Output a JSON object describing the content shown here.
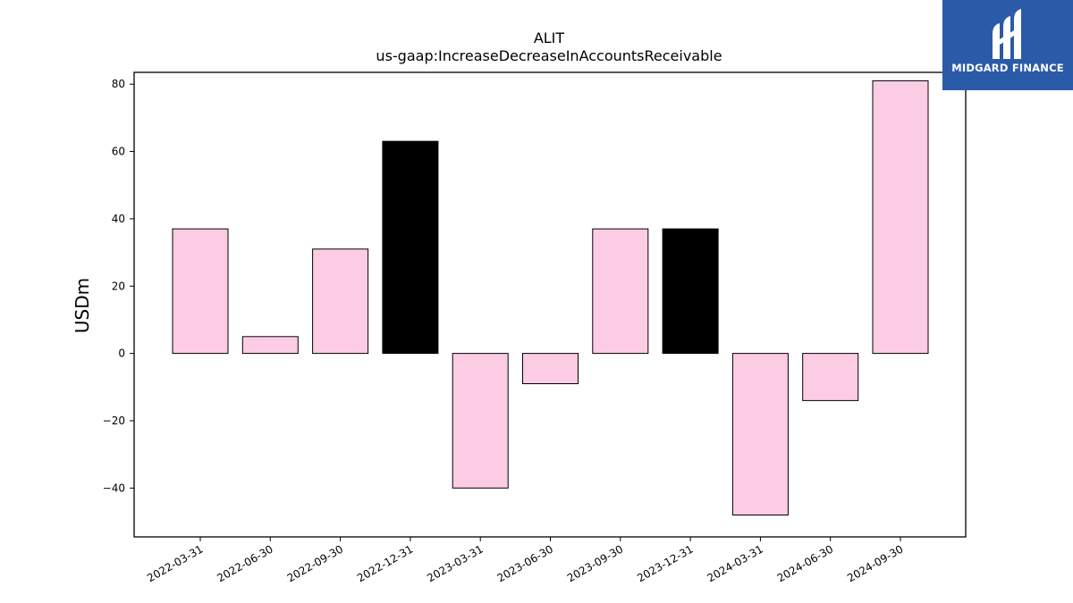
{
  "chart_data": {
    "type": "bar",
    "title": "ALIT",
    "subtitle": "us-gaap:IncreaseDecreaseInAccountsReceivable",
    "ylabel": "USDm",
    "xlabel": "",
    "ylim": [
      -54.5,
      83.5
    ],
    "yticks": [
      80,
      60,
      40,
      20,
      0,
      -20,
      -40
    ],
    "ytick_labels": [
      "80",
      "60",
      "40",
      "20",
      "0",
      "−20",
      "−40"
    ],
    "categories": [
      "2022-03-31",
      "2022-06-30",
      "2022-09-30",
      "2022-12-31",
      "2023-03-31",
      "2023-06-30",
      "2023-09-30",
      "2023-12-31",
      "2024-03-31",
      "2024-06-30",
      "2024-09-30"
    ],
    "values": [
      37,
      5,
      31,
      63,
      -40,
      -9,
      37,
      37,
      -48,
      -14,
      81
    ],
    "bar_colors": [
      "#fccce4",
      "#fccce4",
      "#fccce4",
      "#000000",
      "#fccce4",
      "#fccce4",
      "#fccce4",
      "#000000",
      "#fccce4",
      "#fccce4",
      "#fccce4"
    ],
    "grid": false,
    "legend": "none"
  },
  "logo": {
    "text": "MIDGARD FINANCE",
    "icon": "midgard-logo-icon",
    "background": "#2a5aa8"
  }
}
